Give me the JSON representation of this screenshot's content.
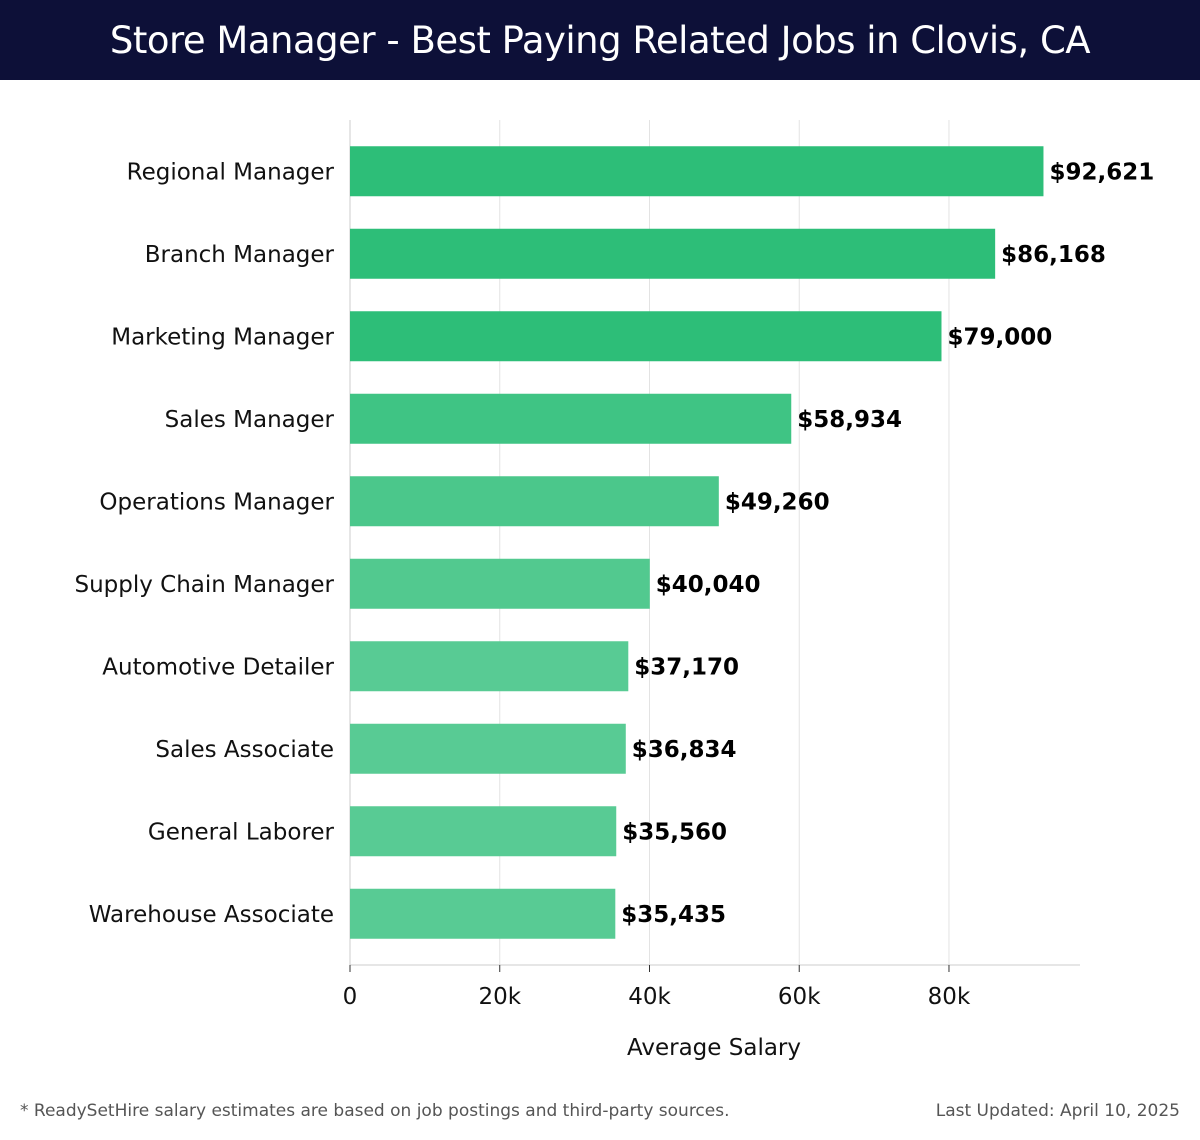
{
  "header": {
    "title": "Store Manager - Best Paying Related Jobs in Clovis, CA"
  },
  "chart_data": {
    "type": "bar",
    "orientation": "horizontal",
    "categories": [
      "Regional Manager",
      "Branch Manager",
      "Marketing Manager",
      "Sales Manager",
      "Operations Manager",
      "Supply Chain Manager",
      "Automotive Detailer",
      "Sales Associate",
      "General Laborer",
      "Warehouse Associate"
    ],
    "values": [
      92621,
      86168,
      79000,
      58934,
      49260,
      40040,
      37170,
      36834,
      35560,
      35435
    ],
    "value_labels": [
      "$92,621",
      "$86,168",
      "$79,000",
      "$58,934",
      "$49,260",
      "$40,040",
      "$37,170",
      "$36,834",
      "$35,560",
      "$35,435"
    ],
    "bar_colors": [
      "#2dbe78",
      "#2dbe78",
      "#2dbe78",
      "#3fc484",
      "#4bc78b",
      "#52c98f",
      "#58cb94",
      "#58cb94",
      "#58cb94",
      "#58cb94"
    ],
    "xlabel": "Average Salary",
    "ylabel": "",
    "xlim": [
      0,
      97500
    ],
    "xticks": [
      0,
      20000,
      40000,
      60000,
      80000
    ],
    "xtick_labels": [
      "0",
      "20k",
      "40k",
      "60k",
      "80k"
    ],
    "grid": true
  },
  "footer": {
    "note": "* ReadySetHire salary estimates are based on job postings and third-party sources.",
    "updated": "Last Updated: April 10, 2025"
  }
}
